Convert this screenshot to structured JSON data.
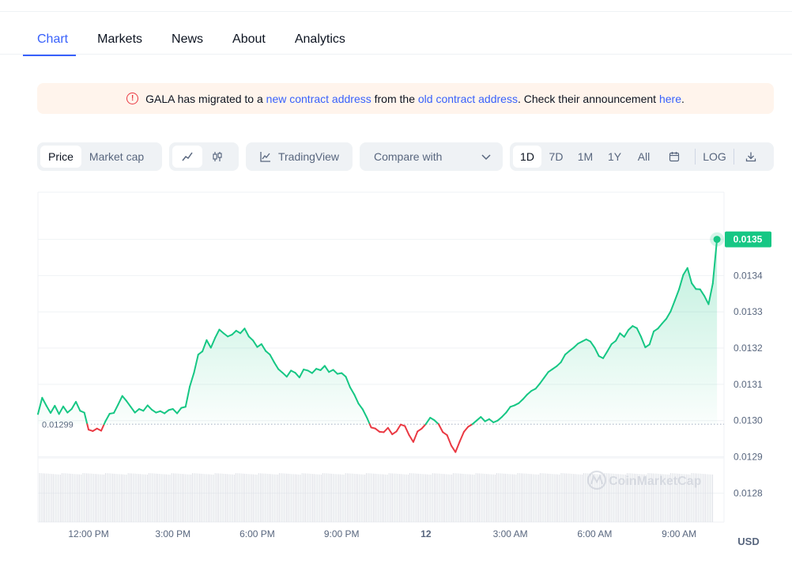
{
  "tabs": [
    {
      "label": "Chart"
    },
    {
      "label": "Markets"
    },
    {
      "label": "News"
    },
    {
      "label": "About"
    },
    {
      "label": "Analytics"
    }
  ],
  "banner": {
    "text_1": "GALA has migrated to a ",
    "link_1": "new contract address",
    "text_2": " from the ",
    "link_2": "old contract address",
    "text_3": ". Check their announcement ",
    "link_3": "here",
    "text_4": "."
  },
  "toolbar": {
    "price_label": "Price",
    "market_cap_label": "Market cap",
    "tradingview_label": "TradingView",
    "compare_label": "Compare with",
    "ranges": [
      "1D",
      "7D",
      "1M",
      "1Y",
      "All"
    ],
    "active_range": "1D",
    "log_label": "LOG"
  },
  "colors": {
    "up": "#16c784",
    "down": "#ea3943",
    "accent": "#3861fb"
  },
  "chart_data": {
    "type": "line",
    "currency": "USD",
    "reference_value": 0.01299,
    "reference_label": "0.01299",
    "current_value": 0.0135,
    "current_label": "0.0135",
    "ylim": [
      0.01272,
      0.01363
    ],
    "y_ticks": [
      "0.0128",
      "0.0129",
      "0.0130",
      "0.0131",
      "0.0132",
      "0.0133",
      "0.0134",
      "0.0135"
    ],
    "x_ticks": [
      "12:00 PM",
      "3:00 PM",
      "6:00 PM",
      "9:00 PM",
      "12",
      "3:00 AM",
      "6:00 AM",
      "9:00 AM"
    ],
    "x_tick_hours": [
      2,
      5,
      8,
      11,
      14,
      17,
      20,
      23
    ],
    "x_range_hours": [
      0.2,
      24.6
    ],
    "watermark": "CoinMarketCap",
    "series": [
      {
        "x": [
          0.2,
          0.35,
          0.5,
          0.65,
          0.8,
          0.95,
          1.1,
          1.25,
          1.4,
          1.55,
          1.7,
          1.85,
          2.0,
          2.15,
          2.3,
          2.45,
          2.6,
          2.75,
          2.9,
          3.05,
          3.2,
          3.35,
          3.5,
          3.65,
          3.8,
          3.95,
          4.1,
          4.25,
          4.4,
          4.55,
          4.7,
          4.85,
          5.0,
          5.15,
          5.3,
          5.45,
          5.6,
          5.75,
          5.9,
          6.05,
          6.2,
          6.35,
          6.5,
          6.65,
          6.8,
          6.95,
          7.1,
          7.25,
          7.4,
          7.55,
          7.7,
          7.85,
          8.0,
          8.15,
          8.3,
          8.45,
          8.6,
          8.75,
          8.9,
          9.05,
          9.2,
          9.35,
          9.5,
          9.65,
          9.8,
          9.95,
          10.1,
          10.25,
          10.4,
          10.55,
          10.7,
          10.85,
          11.0,
          11.15,
          11.3,
          11.45,
          11.6,
          11.75,
          11.9,
          12.05,
          12.2,
          12.35,
          12.5,
          12.65,
          12.8,
          12.95,
          13.1,
          13.25,
          13.4,
          13.55,
          13.7,
          13.85,
          14.0,
          14.15,
          14.3,
          14.45,
          14.6,
          14.75,
          14.9,
          15.05,
          15.2,
          15.35,
          15.5,
          15.65,
          15.8,
          15.95,
          16.1,
          16.25,
          16.4,
          16.55,
          16.7,
          16.85,
          17.0,
          17.15,
          17.3,
          17.45,
          17.6,
          17.75,
          17.9,
          18.05,
          18.2,
          18.35,
          18.5,
          18.65,
          18.8,
          18.95,
          19.1,
          19.25,
          19.4,
          19.55,
          19.7,
          19.85,
          20.0,
          20.15,
          20.3,
          20.45,
          20.6,
          20.75,
          20.9,
          21.05,
          21.2,
          21.35,
          21.5,
          21.65,
          21.8,
          21.95,
          22.1,
          22.25,
          22.4,
          22.55,
          22.7,
          22.85,
          23.0,
          23.15,
          23.3,
          23.45,
          23.6,
          23.75,
          23.9,
          24.05,
          24.2,
          24.35
        ],
        "y": [
          0.013018,
          0.013063,
          0.013041,
          0.013021,
          0.013041,
          0.013018,
          0.013039,
          0.013022,
          0.013032,
          0.013052,
          0.013027,
          0.013022,
          0.012975,
          0.012971,
          0.012978,
          0.012972,
          0.012998,
          0.013019,
          0.013021,
          0.013044,
          0.013068,
          0.013054,
          0.013038,
          0.013022,
          0.013032,
          0.013027,
          0.013042,
          0.01303,
          0.013022,
          0.013026,
          0.01302,
          0.013029,
          0.013032,
          0.01302,
          0.013035,
          0.013038,
          0.013094,
          0.013132,
          0.013182,
          0.013191,
          0.013222,
          0.013201,
          0.013228,
          0.013251,
          0.013241,
          0.013232,
          0.013237,
          0.013248,
          0.013241,
          0.013254,
          0.013232,
          0.013221,
          0.013203,
          0.013211,
          0.013192,
          0.013182,
          0.013161,
          0.013142,
          0.013132,
          0.013121,
          0.013138,
          0.013132,
          0.013119,
          0.013141,
          0.013138,
          0.013131,
          0.013143,
          0.013139,
          0.013151,
          0.013134,
          0.01314,
          0.013129,
          0.013131,
          0.013121,
          0.013092,
          0.013072,
          0.013047,
          0.013031,
          0.013008,
          0.012981,
          0.012978,
          0.012969,
          0.012968,
          0.01298,
          0.012962,
          0.01297,
          0.012989,
          0.012985,
          0.01296,
          0.012941,
          0.01297,
          0.012978,
          0.012991,
          0.013008,
          0.013001,
          0.01299,
          0.012968,
          0.01296,
          0.012931,
          0.012913,
          0.012942,
          0.012969,
          0.012983,
          0.01299,
          0.013,
          0.01301,
          0.012998,
          0.013004,
          0.012995,
          0.013,
          0.01301,
          0.013022,
          0.013038,
          0.013042,
          0.013048,
          0.013059,
          0.013072,
          0.013082,
          0.013088,
          0.013102,
          0.013118,
          0.013134,
          0.013142,
          0.01315,
          0.013161,
          0.013182,
          0.013192,
          0.013201,
          0.013212,
          0.013218,
          0.013224,
          0.013218,
          0.013201,
          0.013178,
          0.013172,
          0.013191,
          0.013211,
          0.01322,
          0.013241,
          0.013231,
          0.01325,
          0.013261,
          0.013255,
          0.013231,
          0.013202,
          0.01321,
          0.013246,
          0.013254,
          0.013268,
          0.013281,
          0.013301,
          0.013331,
          0.013362,
          0.013402,
          0.013421,
          0.013379,
          0.013363,
          0.013362,
          0.013344,
          0.013321,
          0.013378,
          0.0135
        ]
      }
    ]
  }
}
